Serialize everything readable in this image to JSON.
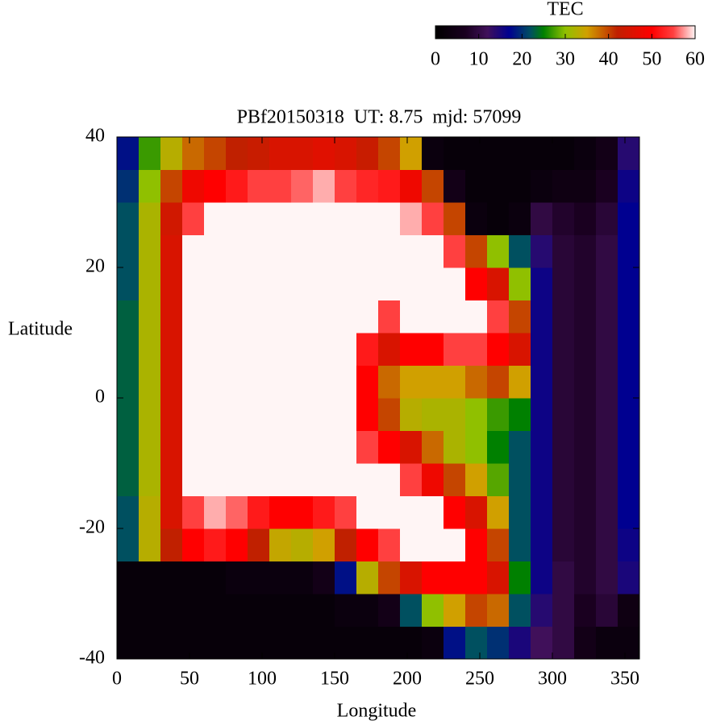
{
  "chart_data": {
    "type": "heatmap",
    "title": "PBf20150318  UT: 8.75  mjd: 57099",
    "xlabel": "Longitude",
    "ylabel": "Latitude",
    "xlim": [
      0,
      360
    ],
    "ylim": [
      -40,
      40
    ],
    "xticks": [
      0,
      50,
      100,
      150,
      200,
      250,
      300,
      350
    ],
    "yticks": [
      -40,
      -20,
      0,
      20,
      40
    ],
    "xbins": [
      0,
      15,
      30,
      45,
      60,
      75,
      90,
      105,
      120,
      135,
      150,
      165,
      180,
      195,
      210,
      225,
      240,
      255,
      270,
      285,
      300,
      315,
      330,
      345,
      360
    ],
    "ybins": [
      -40,
      -35,
      -30,
      -25,
      -20,
      -15,
      -10,
      -5,
      0,
      5,
      10,
      15,
      20,
      25,
      30,
      35,
      40
    ],
    "z": [
      [
        2,
        2,
        2,
        2,
        2,
        2,
        2,
        2,
        2,
        2,
        2,
        2,
        2,
        2,
        3,
        18,
        22,
        20,
        15,
        12,
        10,
        5,
        3,
        3
      ],
      [
        2,
        2,
        2,
        2,
        2,
        2,
        2,
        2,
        2,
        2,
        3,
        3,
        5,
        22,
        30,
        35,
        40,
        38,
        22,
        14,
        10,
        7,
        9,
        4
      ],
      [
        2,
        2,
        2,
        2,
        2,
        3,
        3,
        3,
        3,
        5,
        18,
        33,
        40,
        45,
        50,
        50,
        50,
        45,
        25,
        16,
        10,
        8,
        10,
        15
      ],
      [
        22,
        33,
        42,
        50,
        52,
        50,
        42,
        34,
        33,
        35,
        42,
        50,
        55,
        60,
        60,
        60,
        50,
        40,
        22,
        16,
        9,
        8,
        10,
        16
      ],
      [
        22,
        33,
        45,
        55,
        58,
        56,
        52,
        50,
        50,
        52,
        55,
        60,
        60,
        60,
        60,
        50,
        45,
        35,
        22,
        16,
        9,
        8,
        10,
        17
      ],
      [
        23,
        32,
        45,
        60,
        60,
        60,
        60,
        60,
        60,
        60,
        60,
        60,
        60,
        55,
        48,
        40,
        35,
        28,
        22,
        16,
        9,
        8,
        10,
        17
      ],
      [
        23,
        32,
        45,
        60,
        60,
        60,
        60,
        60,
        60,
        60,
        60,
        55,
        50,
        45,
        38,
        32,
        30,
        25,
        22,
        16,
        9,
        8,
        10,
        17
      ],
      [
        23,
        32,
        45,
        60,
        60,
        60,
        60,
        60,
        60,
        60,
        60,
        50,
        40,
        33,
        32,
        32,
        30,
        27,
        25,
        16,
        9,
        8,
        10,
        17
      ],
      [
        23,
        32,
        45,
        60,
        60,
        60,
        60,
        60,
        60,
        60,
        60,
        50,
        38,
        35,
        35,
        35,
        38,
        40,
        35,
        16,
        9,
        8,
        10,
        17
      ],
      [
        23,
        32,
        45,
        60,
        60,
        60,
        60,
        60,
        60,
        60,
        60,
        52,
        45,
        50,
        50,
        55,
        55,
        50,
        45,
        16,
        9,
        8,
        10,
        17
      ],
      [
        23,
        32,
        45,
        60,
        60,
        60,
        60,
        60,
        60,
        60,
        60,
        60,
        55,
        60,
        60,
        60,
        60,
        55,
        40,
        16,
        9,
        8,
        10,
        17
      ],
      [
        22,
        32,
        45,
        60,
        60,
        60,
        60,
        60,
        60,
        60,
        60,
        60,
        60,
        60,
        60,
        60,
        50,
        45,
        30,
        16,
        9,
        8,
        10,
        17
      ],
      [
        22,
        32,
        45,
        60,
        60,
        60,
        60,
        60,
        60,
        60,
        60,
        60,
        60,
        60,
        60,
        55,
        40,
        30,
        22,
        14,
        9,
        8,
        10,
        17
      ],
      [
        22,
        32,
        44,
        55,
        60,
        60,
        60,
        60,
        60,
        60,
        60,
        60,
        60,
        58,
        55,
        40,
        3,
        2,
        3,
        10,
        8,
        7,
        9,
        17
      ],
      [
        20,
        30,
        40,
        48,
        50,
        52,
        55,
        55,
        56,
        58,
        55,
        53,
        52,
        48,
        40,
        5,
        2,
        2,
        2,
        3,
        4,
        4,
        7,
        16
      ],
      [
        18,
        27,
        33,
        38,
        40,
        42,
        43,
        45,
        45,
        46,
        45,
        43,
        40,
        35,
        3,
        2,
        2,
        2,
        2,
        2,
        2,
        3,
        5,
        14
      ]
    ],
    "colorbar": {
      "label": "TEC",
      "lim": [
        0,
        60
      ],
      "ticks": [
        0,
        10,
        20,
        30,
        40,
        50,
        60
      ]
    },
    "colormap": [
      {
        "value": 0,
        "color": "#000000"
      },
      {
        "value": 7,
        "color": "#1a0020"
      },
      {
        "value": 12,
        "color": "#40105a"
      },
      {
        "value": 17,
        "color": "#000090"
      },
      {
        "value": 22,
        "color": "#005060"
      },
      {
        "value": 25,
        "color": "#008000"
      },
      {
        "value": 30,
        "color": "#90c000"
      },
      {
        "value": 35,
        "color": "#d0a000"
      },
      {
        "value": 42,
        "color": "#c02000"
      },
      {
        "value": 50,
        "color": "#ff0000"
      },
      {
        "value": 55,
        "color": "#ff4040"
      },
      {
        "value": 60,
        "color": "#fff5f5"
      }
    ]
  }
}
